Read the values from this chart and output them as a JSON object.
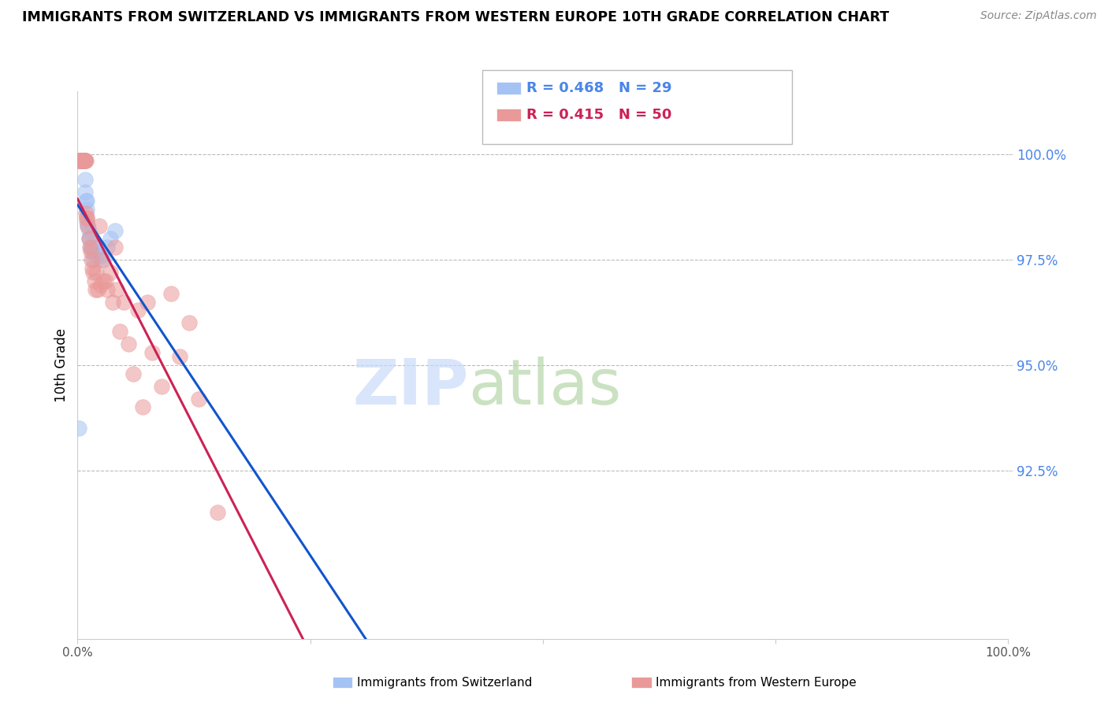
{
  "title": "IMMIGRANTS FROM SWITZERLAND VS IMMIGRANTS FROM WESTERN EUROPE 10TH GRADE CORRELATION CHART",
  "source": "Source: ZipAtlas.com",
  "ylabel": "10th Grade",
  "y_ticks": [
    92.5,
    95.0,
    97.5,
    100.0
  ],
  "y_tick_labels": [
    "92.5%",
    "95.0%",
    "97.5%",
    "100.0%"
  ],
  "x_range": [
    0.0,
    1.0
  ],
  "y_range": [
    88.5,
    101.5
  ],
  "legend_blue_r": "R = 0.468",
  "legend_blue_n": "N = 29",
  "legend_pink_r": "R = 0.415",
  "legend_pink_n": "N = 50",
  "legend_label_blue": "Immigrants from Switzerland",
  "legend_label_pink": "Immigrants from Western Europe",
  "blue_color": "#a4c2f4",
  "pink_color": "#ea9999",
  "blue_line_color": "#1155cc",
  "pink_line_color": "#cc2255",
  "blue_scatter_x": [
    0.001,
    0.005,
    0.005,
    0.005,
    0.007,
    0.007,
    0.008,
    0.008,
    0.009,
    0.01,
    0.01,
    0.01,
    0.011,
    0.012,
    0.012,
    0.013,
    0.014,
    0.015,
    0.016,
    0.017,
    0.018,
    0.02,
    0.022,
    0.025,
    0.028,
    0.032,
    0.035,
    0.04,
    0.001
  ],
  "blue_scatter_y": [
    99.85,
    99.85,
    99.85,
    99.85,
    99.85,
    99.85,
    99.4,
    99.1,
    98.9,
    98.7,
    98.9,
    98.4,
    98.3,
    98.2,
    98.0,
    98.0,
    97.8,
    97.8,
    97.7,
    97.5,
    97.7,
    97.6,
    97.8,
    97.6,
    97.5,
    97.8,
    98.0,
    98.2,
    93.5
  ],
  "pink_scatter_x": [
    0.001,
    0.002,
    0.003,
    0.004,
    0.005,
    0.005,
    0.006,
    0.007,
    0.007,
    0.008,
    0.008,
    0.009,
    0.009,
    0.01,
    0.01,
    0.011,
    0.012,
    0.013,
    0.014,
    0.015,
    0.016,
    0.017,
    0.018,
    0.019,
    0.02,
    0.022,
    0.023,
    0.025,
    0.026,
    0.028,
    0.03,
    0.032,
    0.035,
    0.038,
    0.04,
    0.042,
    0.045,
    0.05,
    0.055,
    0.06,
    0.065,
    0.07,
    0.075,
    0.08,
    0.09,
    0.1,
    0.11,
    0.12,
    0.13,
    0.15
  ],
  "pink_scatter_y": [
    99.85,
    99.85,
    99.85,
    99.85,
    99.85,
    99.85,
    99.85,
    99.85,
    99.85,
    99.85,
    99.85,
    99.85,
    98.6,
    98.5,
    98.5,
    98.3,
    98.0,
    97.8,
    97.7,
    97.5,
    97.3,
    97.2,
    97.0,
    96.8,
    97.2,
    96.8,
    98.3,
    96.9,
    97.5,
    97.0,
    97.0,
    96.8,
    97.2,
    96.5,
    97.8,
    96.8,
    95.8,
    96.5,
    95.5,
    94.8,
    96.3,
    94.0,
    96.5,
    95.3,
    94.5,
    96.7,
    95.2,
    96.0,
    94.2,
    91.5
  ]
}
